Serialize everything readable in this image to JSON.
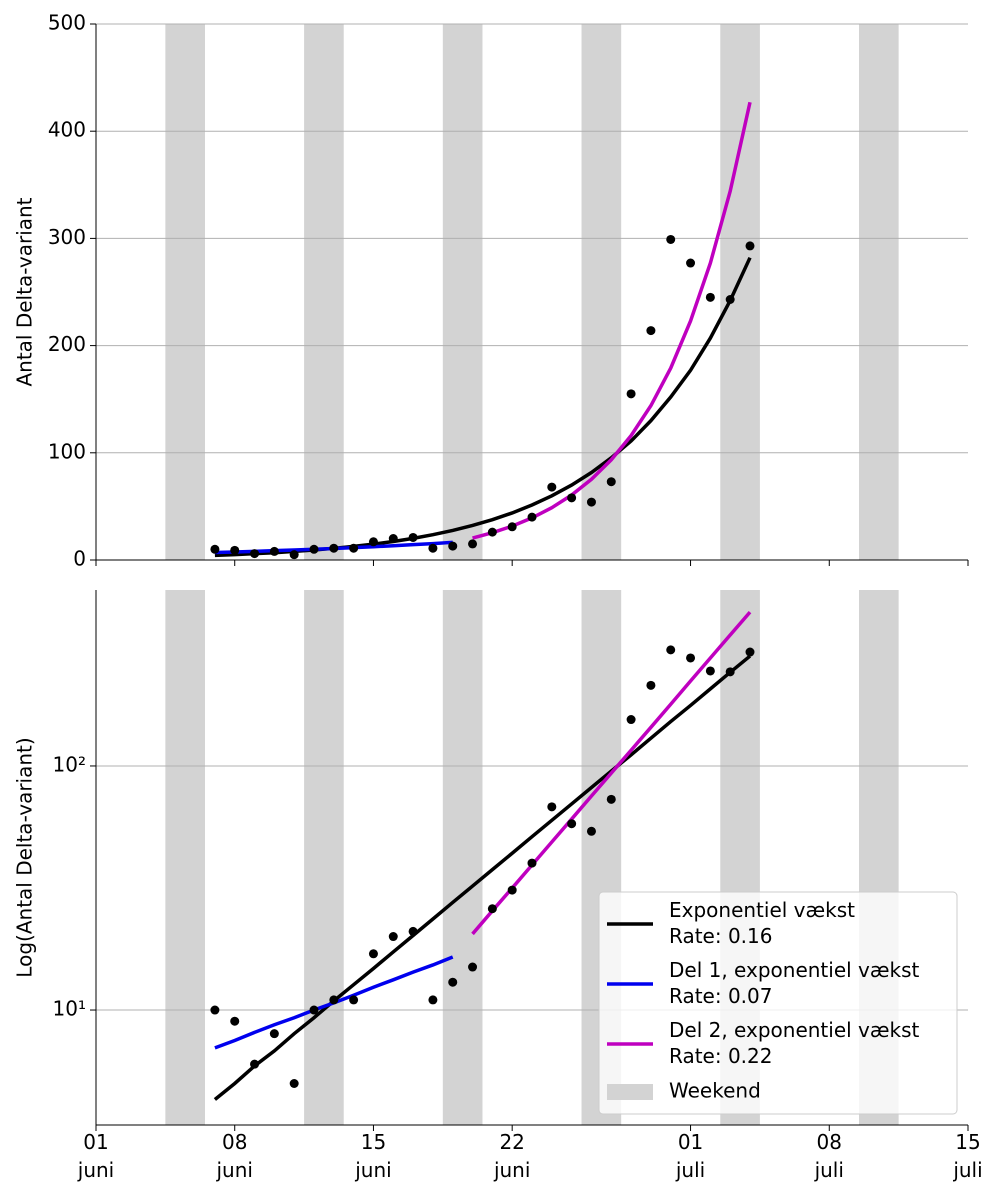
{
  "chart_data": [
    {
      "type": "line",
      "ylabel": "Antal Delta-variant",
      "log_scale": false,
      "grid": true,
      "xlim": [
        "06-01",
        "07-15"
      ],
      "ylim": [
        0,
        500
      ],
      "yticks": [
        0,
        100,
        200,
        300,
        400,
        500
      ],
      "x": [
        "06-07",
        "06-08",
        "06-09",
        "06-10",
        "06-11",
        "06-12",
        "06-13",
        "06-14",
        "06-15",
        "06-16",
        "06-17",
        "06-18",
        "06-19",
        "06-20",
        "06-21",
        "06-22",
        "06-23",
        "06-24",
        "06-25",
        "06-26",
        "06-27",
        "06-28",
        "06-29",
        "06-30",
        "07-01",
        "07-02",
        "07-03",
        "07-04"
      ],
      "points": {
        "color": "#000000",
        "values": [
          10,
          9,
          6,
          8,
          5,
          10,
          11,
          11,
          17,
          20,
          21,
          11,
          13,
          15,
          26,
          31,
          40,
          68,
          58,
          54,
          73,
          155,
          214,
          299,
          277,
          245,
          243,
          293
        ]
      },
      "series": [
        {
          "name": "Exponentiel vækst\nRate: 0.16",
          "color": "#000000",
          "values": [
            4.3,
            5.0,
            5.9,
            6.8,
            8.0,
            9.3,
            10.9,
            12.7,
            14.8,
            17.3,
            20.2,
            23.6,
            27.6,
            32.2,
            37.6,
            43.9,
            51.3,
            59.9,
            69.9,
            81.6,
            95.3,
            111,
            130,
            152,
            177,
            207,
            242,
            282
          ]
        },
        {
          "name": "Del 1, exponentiel vækst\nRate: 0.07",
          "color": "#0000ee",
          "values": [
            7.0,
            7.5,
            8.1,
            8.7,
            9.3,
            10.0,
            10.7,
            11.5,
            12.4,
            13.3,
            14.3,
            15.3,
            16.5,
            null,
            null,
            null,
            null,
            null,
            null,
            null,
            null,
            null,
            null,
            null,
            null,
            null,
            null,
            null
          ]
        },
        {
          "name": "Del 2, exponentiel vækst\nRate: 0.22",
          "color": "#bf00bf",
          "values": [
            null,
            null,
            null,
            null,
            null,
            null,
            null,
            null,
            null,
            null,
            null,
            null,
            null,
            20.5,
            25.5,
            31.6,
            39.3,
            48.8,
            60.6,
            75.3,
            93.5,
            116,
            144,
            179,
            223,
            277,
            344,
            427
          ]
        }
      ],
      "weekends": {
        "name": "Weekend",
        "color": "#d3d3d3",
        "spans": [
          [
            "06-05",
            "06-06"
          ],
          [
            "06-12",
            "06-13"
          ],
          [
            "06-19",
            "06-20"
          ],
          [
            "06-26",
            "06-27"
          ],
          [
            "07-03",
            "07-04"
          ],
          [
            "07-10",
            "07-11"
          ]
        ]
      }
    },
    {
      "type": "line",
      "ylabel": "Log(Antal Delta-variant)",
      "log_scale": true,
      "grid": true,
      "legend": "lower right",
      "xlim": [
        "06-01",
        "07-15"
      ],
      "xticks": [
        {
          "value": "06-01",
          "label": "01\njuni"
        },
        {
          "value": "06-08",
          "label": "08\njuni"
        },
        {
          "value": "06-15",
          "label": "15\njuni"
        },
        {
          "value": "06-22",
          "label": "22\njuni"
        },
        {
          "value": "07-01",
          "label": "01\njuli"
        },
        {
          "value": "07-08",
          "label": "08\njuli"
        },
        {
          "value": "07-15",
          "label": "15\njuli"
        }
      ],
      "ylim": [
        3.38,
        526
      ],
      "yticks": [
        {
          "value": 10,
          "label": "10¹"
        },
        {
          "value": 100,
          "label": "10²"
        }
      ],
      "x": [
        "06-07",
        "06-08",
        "06-09",
        "06-10",
        "06-11",
        "06-12",
        "06-13",
        "06-14",
        "06-15",
        "06-16",
        "06-17",
        "06-18",
        "06-19",
        "06-20",
        "06-21",
        "06-22",
        "06-23",
        "06-24",
        "06-25",
        "06-26",
        "06-27",
        "06-28",
        "06-29",
        "06-30",
        "07-01",
        "07-02",
        "07-03",
        "07-04"
      ],
      "points": {
        "color": "#000000",
        "values": [
          10,
          9,
          6,
          8,
          5,
          10,
          11,
          11,
          17,
          20,
          21,
          11,
          13,
          15,
          26,
          31,
          40,
          68,
          58,
          54,
          73,
          155,
          214,
          299,
          277,
          245,
          243,
          293
        ]
      },
      "series": [
        {
          "name": "Exponentiel vækst\nRate: 0.16",
          "color": "#000000",
          "values": [
            4.3,
            5.0,
            5.9,
            6.8,
            8.0,
            9.3,
            10.9,
            12.7,
            14.8,
            17.3,
            20.2,
            23.6,
            27.6,
            32.2,
            37.6,
            43.9,
            51.3,
            59.9,
            69.9,
            81.6,
            95.3,
            111,
            130,
            152,
            177,
            207,
            242,
            282
          ]
        },
        {
          "name": "Del 1, exponentiel vækst\nRate: 0.07",
          "color": "#0000ee",
          "values": [
            7.0,
            7.5,
            8.1,
            8.7,
            9.3,
            10.0,
            10.7,
            11.5,
            12.4,
            13.3,
            14.3,
            15.3,
            16.5,
            null,
            null,
            null,
            null,
            null,
            null,
            null,
            null,
            null,
            null,
            null,
            null,
            null,
            null,
            null
          ]
        },
        {
          "name": "Del 2, exponentiel vækst\nRate: 0.22",
          "color": "#bf00bf",
          "values": [
            null,
            null,
            null,
            null,
            null,
            null,
            null,
            null,
            null,
            null,
            null,
            null,
            null,
            20.5,
            25.5,
            31.6,
            39.3,
            48.8,
            60.6,
            75.3,
            93.5,
            116,
            144,
            179,
            223,
            277,
            344,
            427
          ]
        }
      ],
      "weekends": {
        "name": "Weekend",
        "color": "#d3d3d3",
        "spans": [
          [
            "06-05",
            "06-06"
          ],
          [
            "06-12",
            "06-13"
          ],
          [
            "06-19",
            "06-20"
          ],
          [
            "06-26",
            "06-27"
          ],
          [
            "07-03",
            "07-04"
          ],
          [
            "07-10",
            "07-11"
          ]
        ]
      }
    }
  ]
}
